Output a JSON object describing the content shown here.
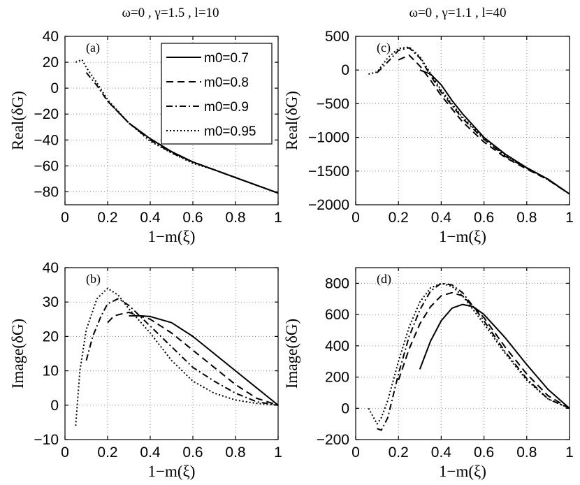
{
  "column_titles": {
    "left": "ω=0 , γ=1.5 , l=10",
    "right": "ω=0 , γ=1.1 , l=40"
  },
  "legend": {
    "entries": [
      {
        "label": "m0=0.7",
        "style": "solid"
      },
      {
        "label": "m0=0.8",
        "style": "dashed"
      },
      {
        "label": "m0=0.9",
        "style": "dashdot"
      },
      {
        "label": "m0=0.95",
        "style": "dotted"
      }
    ]
  },
  "chart_data": [
    {
      "id": "a",
      "panel_label": "(a)",
      "type": "line",
      "xlabel": "1−m(ξ)",
      "ylabel": "Real(δG)",
      "xlim": [
        0,
        1
      ],
      "ylim": [
        -90,
        40
      ],
      "xticks": [
        0,
        0.2,
        0.4,
        0.6,
        0.8,
        1
      ],
      "xtick_labels": [
        "0",
        "0.2",
        "0.4",
        "0.6",
        "0.8",
        "1"
      ],
      "yticks": [
        -80,
        -60,
        -40,
        -20,
        0,
        20,
        40
      ],
      "ytick_labels": [
        "−80",
        "−60",
        "−40",
        "−20",
        "0",
        "20",
        "40"
      ],
      "grid": true,
      "series": [
        {
          "name": "m0=0.7",
          "style": "solid",
          "x": [
            0.3,
            0.4,
            0.5,
            0.6,
            0.7,
            0.8,
            0.9,
            1.0
          ],
          "y": [
            -27,
            -39,
            -49,
            -57,
            -63,
            -69,
            -75,
            -81
          ]
        },
        {
          "name": "m0=0.8",
          "style": "dashed",
          "x": [
            0.2,
            0.3,
            0.4,
            0.5,
            0.6,
            0.7,
            0.8,
            0.9,
            1.0
          ],
          "y": [
            -10,
            -27,
            -39,
            -49,
            -57,
            -63,
            -69,
            -75,
            -81
          ]
        },
        {
          "name": "m0=0.9",
          "style": "dashdot",
          "x": [
            0.1,
            0.15,
            0.2,
            0.3,
            0.4,
            0.5,
            0.6,
            0.7,
            0.8,
            0.9,
            1.0
          ],
          "y": [
            12,
            2,
            -10,
            -27,
            -40,
            -50,
            -57,
            -63,
            -69,
            -75,
            -81
          ]
        },
        {
          "name": "m0=0.95",
          "style": "dotted",
          "x": [
            0.05,
            0.08,
            0.1,
            0.15,
            0.2,
            0.3,
            0.4,
            0.5,
            0.6,
            0.7,
            0.8,
            0.9,
            1.0
          ],
          "y": [
            20,
            22,
            16,
            4,
            -9,
            -27,
            -41,
            -50,
            -58,
            -63,
            -69,
            -75,
            -81
          ]
        }
      ]
    },
    {
      "id": "b",
      "panel_label": "(b)",
      "type": "line",
      "xlabel": "1−m(ξ)",
      "ylabel": "Image(δG)",
      "xlim": [
        0,
        1
      ],
      "ylim": [
        -10,
        40
      ],
      "xticks": [
        0,
        0.2,
        0.4,
        0.6,
        0.8,
        1
      ],
      "xtick_labels": [
        "0",
        "0.2",
        "0.4",
        "0.6",
        "0.8",
        "1"
      ],
      "yticks": [
        -10,
        0,
        10,
        20,
        30,
        40
      ],
      "ytick_labels": [
        "−10",
        "0",
        "10",
        "20",
        "30",
        "40"
      ],
      "grid": true,
      "series": [
        {
          "name": "m0=0.7",
          "style": "solid",
          "x": [
            0.3,
            0.35,
            0.4,
            0.5,
            0.6,
            0.7,
            0.8,
            0.9,
            0.95,
            1.0
          ],
          "y": [
            26,
            26,
            25.8,
            24,
            20,
            15,
            10,
            5,
            2.5,
            0
          ]
        },
        {
          "name": "m0=0.8",
          "style": "dashed",
          "x": [
            0.2,
            0.23,
            0.27,
            0.3,
            0.35,
            0.4,
            0.5,
            0.6,
            0.7,
            0.8,
            0.9,
            1.0
          ],
          "y": [
            24,
            26,
            26.6,
            27,
            26,
            25,
            21,
            16,
            11,
            6,
            2,
            0
          ]
        },
        {
          "name": "m0=0.9",
          "style": "dashdot",
          "x": [
            0.1,
            0.13,
            0.17,
            0.2,
            0.25,
            0.3,
            0.35,
            0.4,
            0.5,
            0.6,
            0.7,
            0.8,
            0.9,
            1.0
          ],
          "y": [
            13,
            20,
            26,
            29.5,
            31,
            29,
            26,
            23,
            17,
            11,
            7,
            3.5,
            1,
            0
          ]
        },
        {
          "name": "m0=0.95",
          "style": "dotted",
          "x": [
            0.05,
            0.07,
            0.1,
            0.15,
            0.2,
            0.25,
            0.3,
            0.4,
            0.5,
            0.6,
            0.7,
            0.8,
            0.9,
            1.0
          ],
          "y": [
            -6,
            10,
            22,
            31,
            34,
            32,
            28,
            21,
            13,
            7,
            3.5,
            1.5,
            0.5,
            0
          ]
        }
      ]
    },
    {
      "id": "c",
      "panel_label": "(c)",
      "type": "line",
      "xlabel": "1−m(ξ)",
      "ylabel": "Real(δG)",
      "xlim": [
        0,
        1
      ],
      "ylim": [
        -2000,
        500
      ],
      "xticks": [
        0,
        0.2,
        0.4,
        0.6,
        0.8,
        1
      ],
      "xtick_labels": [
        "0",
        "0.2",
        "0.4",
        "0.6",
        "0.8",
        "1"
      ],
      "yticks": [
        -2000,
        -1500,
        -1000,
        -500,
        0,
        500
      ],
      "ytick_labels": [
        "−2000",
        "−1500",
        "−1000",
        "−500",
        "0",
        "500"
      ],
      "grid": true,
      "series": [
        {
          "name": "m0=0.7",
          "style": "solid",
          "x": [
            0.3,
            0.35,
            0.4,
            0.45,
            0.5,
            0.6,
            0.7,
            0.8,
            0.9,
            1.0
          ],
          "y": [
            0,
            -60,
            -220,
            -450,
            -650,
            -1000,
            -1250,
            -1450,
            -1620,
            -1840
          ]
        },
        {
          "name": "m0=0.8",
          "style": "dashed",
          "x": [
            0.2,
            0.25,
            0.3,
            0.35,
            0.4,
            0.5,
            0.6,
            0.7,
            0.8,
            0.9,
            1.0
          ],
          "y": [
            150,
            220,
            60,
            -150,
            -380,
            -770,
            -1070,
            -1300,
            -1470,
            -1630,
            -1840
          ]
        },
        {
          "name": "m0=0.9",
          "style": "dashdot",
          "x": [
            0.1,
            0.15,
            0.2,
            0.25,
            0.3,
            0.35,
            0.4,
            0.5,
            0.6,
            0.7,
            0.8,
            0.9,
            1.0
          ],
          "y": [
            -40,
            120,
            290,
            330,
            180,
            -80,
            -330,
            -720,
            -1030,
            -1280,
            -1460,
            -1630,
            -1840
          ]
        },
        {
          "name": "m0=0.95",
          "style": "dotted",
          "x": [
            0.06,
            0.1,
            0.15,
            0.2,
            0.25,
            0.3,
            0.35,
            0.4,
            0.5,
            0.6,
            0.7,
            0.8,
            0.9,
            1.0
          ],
          "y": [
            -60,
            -30,
            180,
            320,
            340,
            200,
            -50,
            -300,
            -700,
            -1010,
            -1270,
            -1450,
            -1630,
            -1840
          ]
        }
      ]
    },
    {
      "id": "d",
      "panel_label": "(d)",
      "type": "line",
      "xlabel": "1−m(ξ)",
      "ylabel": "Image(δG)",
      "xlim": [
        0,
        1
      ],
      "ylim": [
        -200,
        900
      ],
      "xticks": [
        0,
        0.2,
        0.4,
        0.6,
        0.8,
        1
      ],
      "xtick_labels": [
        "0",
        "0.2",
        "0.4",
        "0.6",
        "0.8",
        "1"
      ],
      "yticks": [
        -200,
        0,
        200,
        400,
        600,
        800
      ],
      "ytick_labels": [
        "−200",
        "0",
        "200",
        "400",
        "600",
        "800"
      ],
      "grid": true,
      "series": [
        {
          "name": "m0=0.7",
          "style": "solid",
          "x": [
            0.3,
            0.35,
            0.4,
            0.45,
            0.5,
            0.55,
            0.6,
            0.7,
            0.8,
            0.9,
            1.0
          ],
          "y": [
            250,
            430,
            560,
            640,
            665,
            650,
            600,
            450,
            280,
            120,
            0
          ]
        },
        {
          "name": "m0=0.8",
          "style": "dashed",
          "x": [
            0.2,
            0.25,
            0.3,
            0.35,
            0.4,
            0.45,
            0.5,
            0.6,
            0.7,
            0.8,
            0.9,
            1.0
          ],
          "y": [
            180,
            380,
            540,
            650,
            720,
            740,
            720,
            580,
            390,
            220,
            80,
            0
          ]
        },
        {
          "name": "m0=0.9",
          "style": "dashdot",
          "x": [
            0.1,
            0.12,
            0.15,
            0.2,
            0.25,
            0.3,
            0.35,
            0.4,
            0.45,
            0.5,
            0.6,
            0.7,
            0.8,
            0.9,
            1.0
          ],
          "y": [
            -130,
            -140,
            -60,
            220,
            460,
            630,
            750,
            800,
            790,
            740,
            560,
            360,
            190,
            60,
            0
          ]
        },
        {
          "name": "m0=0.95",
          "style": "dotted",
          "x": [
            0.06,
            0.1,
            0.12,
            0.15,
            0.2,
            0.25,
            0.3,
            0.35,
            0.4,
            0.45,
            0.5,
            0.6,
            0.7,
            0.8,
            0.9,
            1.0
          ],
          "y": [
            0,
            -100,
            -60,
            50,
            300,
            520,
            680,
            770,
            800,
            780,
            720,
            540,
            350,
            180,
            60,
            0
          ]
        }
      ]
    }
  ]
}
